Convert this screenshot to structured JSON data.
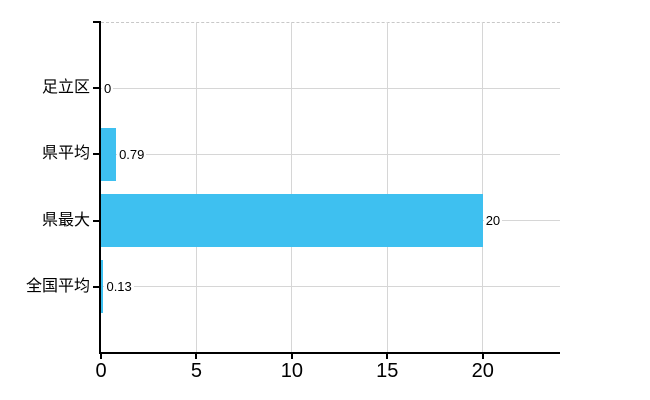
{
  "chart_data": {
    "type": "bar",
    "orientation": "horizontal",
    "title": "",
    "categories": [
      "足立区",
      "県平均",
      "県最大",
      "全国平均"
    ],
    "values": [
      0,
      0.79,
      20,
      0.13
    ],
    "value_labels": [
      "0",
      "0.79",
      "20",
      "0.13"
    ],
    "x_ticks": [
      0,
      5,
      10,
      15,
      20
    ],
    "x_tick_labels": [
      "0",
      "5",
      "10",
      "15",
      "20"
    ],
    "xlim": [
      0,
      24.05
    ],
    "grid": true,
    "legend": "none",
    "top_border_style": "dashed",
    "colors": {
      "bar": "#3EC0F0",
      "gridline": "#D6D6D6",
      "axis": "#000000",
      "text": "#000000",
      "top_border": "#C8C8C8",
      "background": "#FFFFFF"
    }
  }
}
